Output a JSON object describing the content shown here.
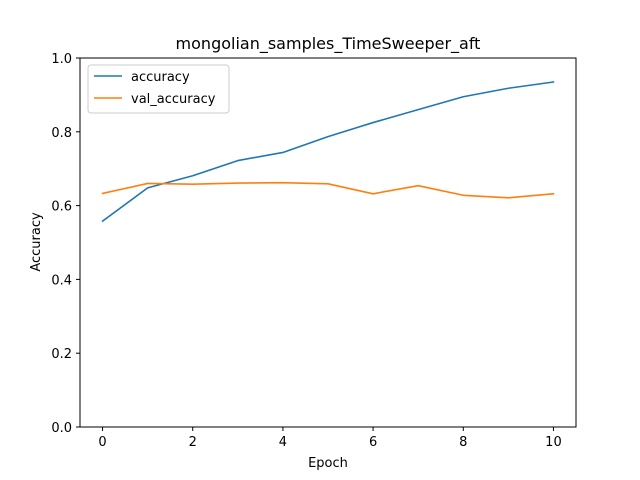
{
  "chart_data": {
    "type": "line",
    "title": "mongolian_samples_TimeSweeper_aft",
    "xlabel": "Epoch",
    "ylabel": "Accuracy",
    "xlim": [
      -0.5,
      10.5
    ],
    "ylim": [
      0.0,
      1.0
    ],
    "xticks": [
      "0",
      "2",
      "4",
      "6",
      "8",
      "10"
    ],
    "yticks": [
      "0.0",
      "0.2",
      "0.4",
      "0.6",
      "0.8",
      "1.0"
    ],
    "grid": false,
    "legend_position": "upper-left",
    "x": [
      0,
      1,
      2,
      3,
      4,
      5,
      6,
      7,
      8,
      9,
      10
    ],
    "series": [
      {
        "name": "accuracy",
        "color": "#1f77b4",
        "values": [
          0.558,
          0.648,
          0.681,
          0.722,
          0.744,
          0.787,
          0.825,
          0.86,
          0.895,
          0.918,
          0.935
        ]
      },
      {
        "name": "val_accuracy",
        "color": "#ff7f0e",
        "values": [
          0.633,
          0.66,
          0.658,
          0.661,
          0.662,
          0.659,
          0.632,
          0.654,
          0.628,
          0.621,
          0.632
        ]
      }
    ]
  }
}
